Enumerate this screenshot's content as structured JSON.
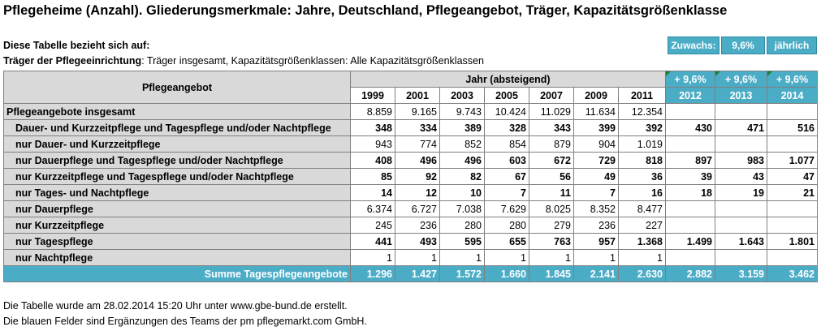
{
  "title": "Pflegeheime (Anzahl). Gliederungsmerkmale: Jahre, Deutschland, Pflegeangebot, Träger, Kapazitätsgrößenklasse",
  "info": {
    "line1": "Diese Tabelle bezieht sich auf:",
    "line2_label": "Träger der Pflegeeinrichtung",
    "line2_value": ": Träger insgesamt, Kapazitätsgrößenklassen: Alle Kapazitätsgrößenklassen"
  },
  "growth": {
    "label": "Zuwachs:",
    "value": "9,6%",
    "period": "jährlich"
  },
  "table": {
    "header_col": "Pflegeangebot",
    "header_years": "Jahr (absteigend)",
    "proj_label": "+ 9,6%",
    "years": [
      "1999",
      "2001",
      "2003",
      "2005",
      "2007",
      "2009",
      "2011",
      "2012",
      "2013",
      "2014"
    ],
    "rows": [
      {
        "label": "Pflegeangebote insgesamt",
        "bold": false,
        "indent": false,
        "values": [
          "8.859",
          "9.165",
          "9.743",
          "10.424",
          "11.029",
          "11.634",
          "12.354",
          "",
          "",
          ""
        ]
      },
      {
        "label": "Dauer- und Kurzzeitpflege und Tagespflege und/oder Nachtpflege",
        "bold": true,
        "indent": true,
        "values": [
          "348",
          "334",
          "389",
          "328",
          "343",
          "399",
          "392",
          "430",
          "471",
          "516"
        ]
      },
      {
        "label": "nur Dauer- und Kurzzeitpflege",
        "bold": false,
        "indent": true,
        "values": [
          "943",
          "774",
          "852",
          "854",
          "879",
          "904",
          "1.019",
          "",
          "",
          ""
        ]
      },
      {
        "label": "nur Dauerpflege und Tagespflege und/oder Nachtpflege",
        "bold": true,
        "indent": true,
        "values": [
          "408",
          "496",
          "496",
          "603",
          "672",
          "729",
          "818",
          "897",
          "983",
          "1.077"
        ]
      },
      {
        "label": "nur Kurzzeitpflege und Tagespflege und/oder Nachtpflege",
        "bold": true,
        "indent": true,
        "values": [
          "85",
          "92",
          "82",
          "67",
          "56",
          "49",
          "36",
          "39",
          "43",
          "47"
        ]
      },
      {
        "label": "nur Tages- und Nachtpflege",
        "bold": true,
        "indent": true,
        "values": [
          "14",
          "12",
          "10",
          "7",
          "11",
          "7",
          "16",
          "18",
          "19",
          "21"
        ]
      },
      {
        "label": "nur Dauerpflege",
        "bold": false,
        "indent": true,
        "values": [
          "6.374",
          "6.727",
          "7.038",
          "7.629",
          "8.025",
          "8.352",
          "8.477",
          "",
          "",
          ""
        ]
      },
      {
        "label": "nur Kurzzeitpflege",
        "bold": false,
        "indent": true,
        "values": [
          "245",
          "236",
          "280",
          "280",
          "279",
          "236",
          "227",
          "",
          "",
          ""
        ]
      },
      {
        "label": "nur Tagespflege",
        "bold": true,
        "indent": true,
        "values": [
          "441",
          "493",
          "595",
          "655",
          "763",
          "957",
          "1.368",
          "1.499",
          "1.643",
          "1.801"
        ]
      },
      {
        "label": "nur Nachtpflege",
        "bold": false,
        "indent": true,
        "values": [
          "1",
          "1",
          "1",
          "1",
          "1",
          "1",
          "1",
          "",
          "",
          ""
        ]
      }
    ],
    "sum": {
      "label": "Summe Tagespflegeangebote",
      "values": [
        "1.296",
        "1.427",
        "1.572",
        "1.660",
        "1.845",
        "2.141",
        "2.630",
        "2.882",
        "3.159",
        "3.462"
      ]
    }
  },
  "footer": {
    "line1": "Die Tabelle wurde am 28.02.2014 15:20 Uhr unter www.gbe-bund.de erstellt.",
    "line2": "Die blauen Felder sind Ergänzungen des Teams der pm pflegemarkt.com GmbH."
  }
}
